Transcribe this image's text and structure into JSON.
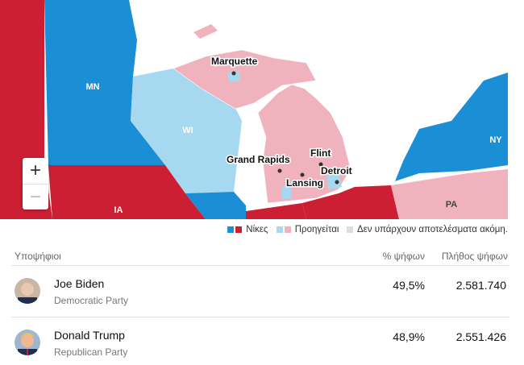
{
  "map": {
    "states": [
      "MN",
      "WI",
      "IA",
      "NY",
      "PA"
    ],
    "cities": [
      "Marquette",
      "Grand Rapids",
      "Flint",
      "Lansing",
      "Detroit"
    ],
    "zoom_in": "+",
    "zoom_out": "−"
  },
  "legend": {
    "won": "Νίκες",
    "leading": "Προηγείται",
    "no_results": "Δεν υπάρχουν αποτελέσματα ακόμη."
  },
  "table": {
    "headers": [
      "Υποψήφιοι",
      "% ψήφων",
      "Πλήθος ψήφων"
    ],
    "rows": [
      {
        "name": "Joe Biden",
        "party": "Democratic Party",
        "percent": "49,5%",
        "votes": "2.581.740"
      },
      {
        "name": "Donald Trump",
        "party": "Republican Party",
        "percent": "48,9%",
        "votes": "2.551.426"
      }
    ]
  }
}
